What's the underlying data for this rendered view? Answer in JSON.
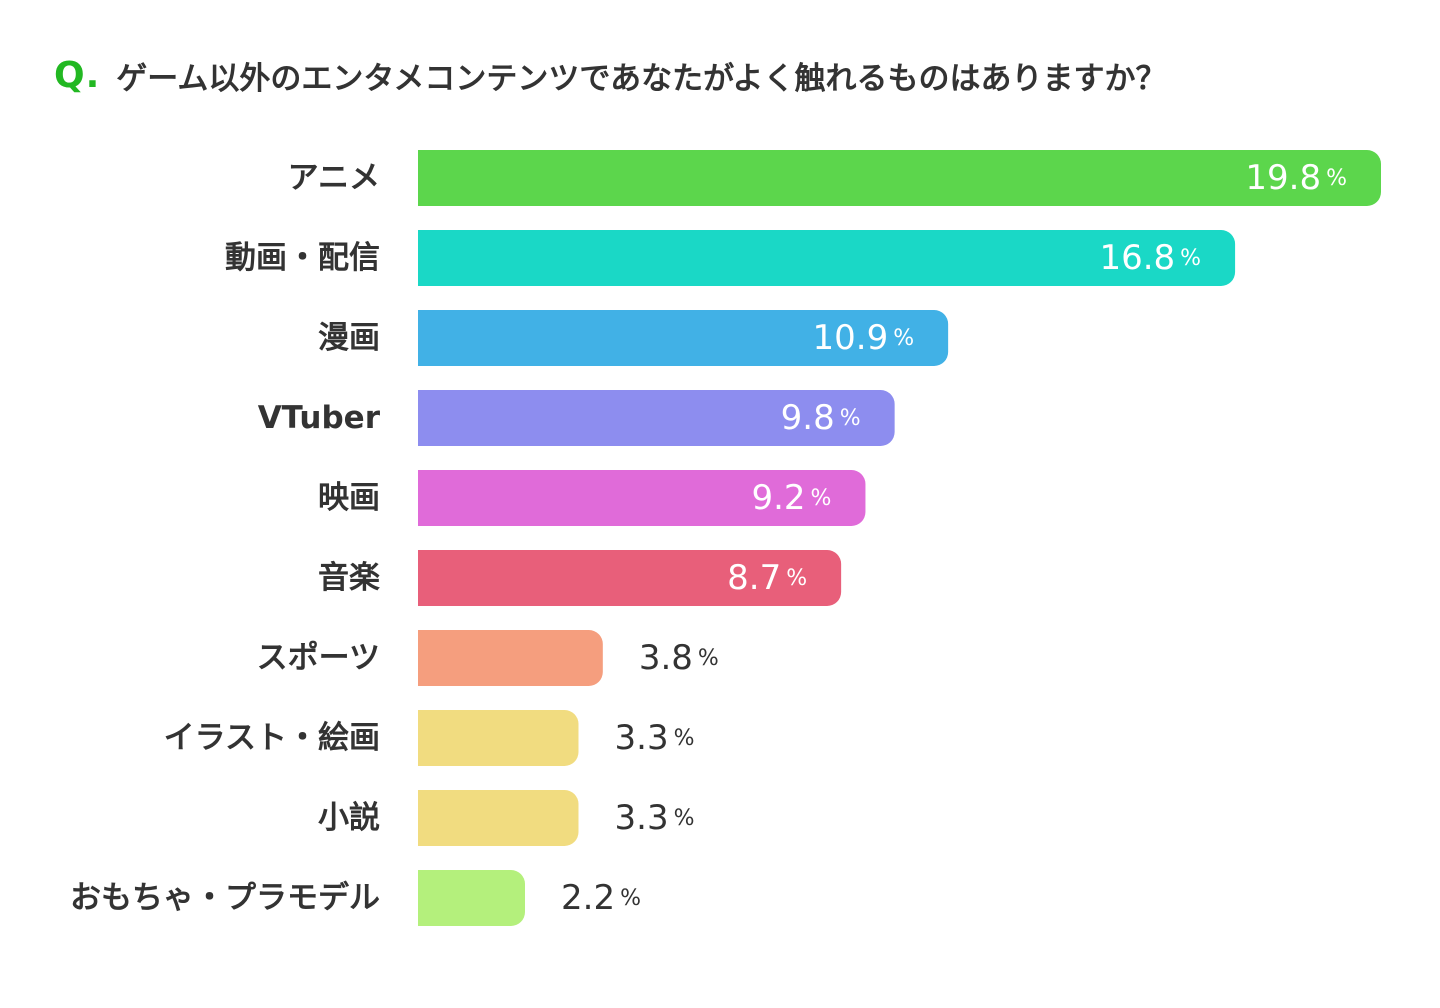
{
  "question": {
    "marker": "Q.",
    "text": "ゲーム以外のエンタメコンテンツであなたがよく触れるものはありますか？"
  },
  "chart_data": {
    "type": "bar",
    "orientation": "horizontal",
    "title": "ゲーム以外のエンタメコンテンツであなたがよく触れるものはありますか？",
    "unit": "%",
    "categories": [
      "アニメ",
      "動画・配信",
      "漫画",
      "VTuber",
      "映画",
      "音楽",
      "スポーツ",
      "イラスト・絵画",
      "小説",
      "おもちゃ・プラモデル"
    ],
    "values": [
      19.8,
      16.8,
      10.9,
      9.8,
      9.2,
      8.7,
      3.8,
      3.3,
      3.3,
      2.2
    ],
    "labels": [
      "19.8",
      "16.8",
      "10.9",
      "9.8",
      "9.2",
      "8.7",
      "3.8",
      "3.3",
      "3.3",
      "2.2"
    ],
    "colors": [
      "#5cd64c",
      "#1ad8c6",
      "#41b1e6",
      "#8d8def",
      "#e06bd9",
      "#e85f7a",
      "#f59e7e",
      "#f1dc80",
      "#f1dc80",
      "#b4f07c"
    ],
    "label_inside": [
      true,
      true,
      true,
      true,
      true,
      true,
      false,
      false,
      false,
      false
    ],
    "xlim": [
      0,
      19.8
    ]
  }
}
